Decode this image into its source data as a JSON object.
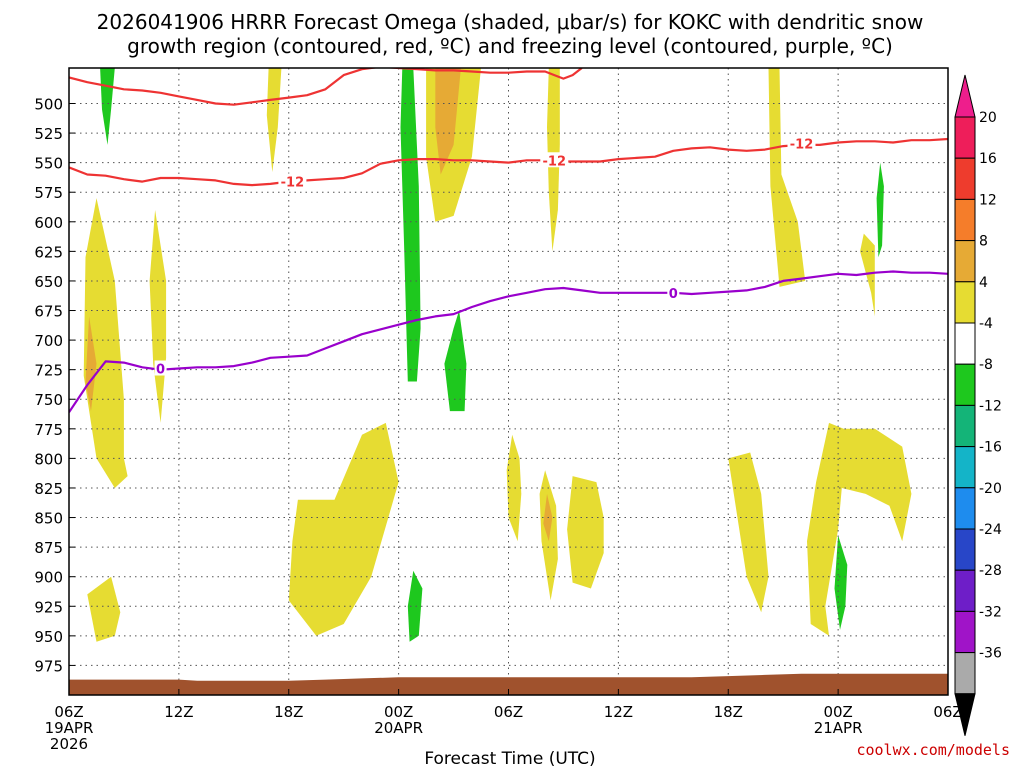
{
  "chart_data": {
    "type": "time-height contour plot",
    "title_line1": "2026041906 HRRR Forecast Omega (shaded, μbar/s) for KOKC with dendritic snow",
    "title_line2": "growth region (contoured, red, ºC) and freezing level (contoured, purple, ºC)",
    "xlabel": "Forecast Time (UTC)",
    "credit": "coolwx.com/models",
    "x_range_hours": [
      0,
      48
    ],
    "y_range_mb": [
      1000,
      470
    ],
    "x_ticks": [
      {
        "hour": 0,
        "lines": [
          "06Z",
          "19APR",
          "2026"
        ]
      },
      {
        "hour": 6,
        "lines": [
          "12Z"
        ]
      },
      {
        "hour": 12,
        "lines": [
          "18Z"
        ]
      },
      {
        "hour": 18,
        "lines": [
          "00Z",
          "20APR"
        ]
      },
      {
        "hour": 24,
        "lines": [
          "06Z"
        ]
      },
      {
        "hour": 30,
        "lines": [
          "12Z"
        ]
      },
      {
        "hour": 36,
        "lines": [
          "18Z"
        ]
      },
      {
        "hour": 42,
        "lines": [
          "00Z",
          "21APR"
        ]
      },
      {
        "hour": 48,
        "lines": [
          "06Z"
        ]
      }
    ],
    "y_ticks": [
      500,
      525,
      550,
      575,
      600,
      625,
      650,
      675,
      700,
      725,
      750,
      775,
      800,
      825,
      850,
      875,
      900,
      925,
      950,
      975
    ],
    "isotherm_minus12": [
      {
        "name": "upper",
        "points": [
          [
            0,
            478
          ],
          [
            1,
            482
          ],
          [
            2,
            485
          ],
          [
            3,
            488
          ],
          [
            4,
            489
          ],
          [
            5,
            491
          ],
          [
            6,
            494
          ],
          [
            7,
            497
          ],
          [
            8,
            500
          ],
          [
            9,
            501
          ],
          [
            10,
            499
          ],
          [
            11,
            497
          ],
          [
            12,
            495
          ],
          [
            13,
            493
          ],
          [
            14,
            488
          ],
          [
            15,
            476
          ],
          [
            16,
            471
          ],
          [
            17,
            469
          ],
          [
            18,
            470
          ],
          [
            19,
            471
          ],
          [
            20,
            472
          ],
          [
            21,
            472
          ],
          [
            22,
            473
          ],
          [
            23,
            474
          ],
          [
            24,
            474
          ],
          [
            25,
            473
          ],
          [
            26,
            473
          ],
          [
            26.5,
            476
          ],
          [
            27,
            479
          ],
          [
            27.5,
            476
          ],
          [
            28,
            470
          ]
        ]
      },
      {
        "name": "lower",
        "points": [
          [
            0,
            554
          ],
          [
            1,
            560
          ],
          [
            2,
            561
          ],
          [
            3,
            564
          ],
          [
            4,
            566
          ],
          [
            5,
            563
          ],
          [
            6,
            563
          ],
          [
            7,
            564
          ],
          [
            8,
            565
          ],
          [
            9,
            568
          ],
          [
            10,
            569
          ],
          [
            11,
            568
          ],
          [
            12,
            566
          ],
          [
            13,
            565
          ],
          [
            14,
            564
          ],
          [
            15,
            563
          ],
          [
            16,
            559
          ],
          [
            17,
            551
          ],
          [
            18,
            548
          ],
          [
            19,
            547
          ],
          [
            20,
            547
          ],
          [
            21,
            548
          ],
          [
            22,
            548
          ],
          [
            23,
            549
          ],
          [
            24,
            550
          ],
          [
            25,
            548
          ],
          [
            26,
            548
          ],
          [
            27,
            549
          ],
          [
            28,
            549
          ],
          [
            29,
            549
          ],
          [
            30,
            547
          ],
          [
            31,
            546
          ],
          [
            32,
            545
          ],
          [
            33,
            540
          ],
          [
            34,
            538
          ],
          [
            35,
            537
          ],
          [
            36,
            539
          ],
          [
            37,
            540
          ],
          [
            38,
            539
          ],
          [
            39,
            536
          ],
          [
            40,
            535
          ],
          [
            41,
            535
          ],
          [
            42,
            533
          ],
          [
            43,
            532
          ],
          [
            44,
            532
          ],
          [
            45,
            533
          ],
          [
            46,
            531
          ],
          [
            47,
            531
          ],
          [
            48,
            530
          ]
        ]
      }
    ],
    "freezing_level_0C": [
      [
        0,
        761
      ],
      [
        1,
        738
      ],
      [
        2,
        718
      ],
      [
        3,
        719
      ],
      [
        4,
        723
      ],
      [
        5,
        725
      ],
      [
        6,
        724
      ],
      [
        7,
        723
      ],
      [
        8,
        723
      ],
      [
        9,
        722
      ],
      [
        10,
        719
      ],
      [
        11,
        715
      ],
      [
        12,
        714
      ],
      [
        13,
        713
      ],
      [
        14,
        707
      ],
      [
        15,
        701
      ],
      [
        16,
        695
      ],
      [
        17,
        691
      ],
      [
        18,
        687
      ],
      [
        19,
        683
      ],
      [
        20,
        680
      ],
      [
        21,
        678
      ],
      [
        22,
        672
      ],
      [
        23,
        667
      ],
      [
        24,
        663
      ],
      [
        25,
        660
      ],
      [
        26,
        657
      ],
      [
        27,
        656
      ],
      [
        28,
        658
      ],
      [
        29,
        660
      ],
      [
        30,
        660
      ],
      [
        31,
        660
      ],
      [
        32,
        660
      ],
      [
        33,
        660
      ],
      [
        34,
        661
      ],
      [
        35,
        660
      ],
      [
        36,
        659
      ],
      [
        37,
        658
      ],
      [
        38,
        655
      ],
      [
        39,
        650
      ],
      [
        40,
        648
      ],
      [
        41,
        646
      ],
      [
        42,
        644
      ],
      [
        43,
        645
      ],
      [
        44,
        643
      ],
      [
        45,
        642
      ],
      [
        46,
        643
      ],
      [
        47,
        643
      ],
      [
        48,
        644
      ]
    ],
    "contour_labels": [
      {
        "text": "-12",
        "hour": 12.2,
        "mb": 566,
        "color": "#ee3333"
      },
      {
        "text": "-12",
        "hour": 26.5,
        "mb": 548,
        "color": "#ee3333"
      },
      {
        "text": "-12",
        "hour": 40,
        "mb": 534,
        "color": "#ee3333"
      },
      {
        "text": "0",
        "hour": 5,
        "mb": 724,
        "color": "#9900cc"
      },
      {
        "text": "0",
        "hour": 33,
        "mb": 660,
        "color": "#9900cc"
      }
    ],
    "omega_regions": [
      {
        "level": 4,
        "points": [
          [
            1.5,
            580
          ],
          [
            2.5,
            650
          ],
          [
            3,
            750
          ],
          [
            3,
            800
          ],
          [
            3.2,
            815
          ],
          [
            2.5,
            825
          ],
          [
            1.5,
            800
          ],
          [
            0.8,
            730
          ],
          [
            0.9,
            630
          ]
        ]
      },
      {
        "level": 8,
        "points": [
          [
            1.1,
            680
          ],
          [
            1.5,
            720
          ],
          [
            1.2,
            760
          ],
          [
            0.9,
            735
          ]
        ]
      },
      {
        "level": 4,
        "points": [
          [
            4.7,
            590
          ],
          [
            5.3,
            650
          ],
          [
            5.3,
            715
          ],
          [
            5,
            770
          ],
          [
            4.6,
            720
          ],
          [
            4.4,
            650
          ]
        ]
      },
      {
        "level": -4,
        "points": [
          [
            1.7,
            470
          ],
          [
            2.5,
            470
          ],
          [
            2.3,
            505
          ],
          [
            2.1,
            535
          ],
          [
            1.8,
            505
          ]
        ]
      },
      {
        "level": 4,
        "points": [
          [
            10.9,
            470
          ],
          [
            11.6,
            470
          ],
          [
            11.4,
            520
          ],
          [
            11.1,
            558
          ],
          [
            10.8,
            510
          ]
        ]
      },
      {
        "level": 4,
        "points": [
          [
            26.2,
            470
          ],
          [
            26.8,
            470
          ],
          [
            26.8,
            535
          ],
          [
            26.7,
            590
          ],
          [
            26.4,
            625
          ],
          [
            26.2,
            575
          ],
          [
            26.1,
            520
          ]
        ]
      },
      {
        "level": 4,
        "points": [
          [
            19.5,
            470
          ],
          [
            22.5,
            470
          ],
          [
            22,
            545
          ],
          [
            21,
            595
          ],
          [
            20,
            600
          ],
          [
            19.5,
            545
          ]
        ]
      },
      {
        "level": 8,
        "points": [
          [
            20,
            470
          ],
          [
            21.4,
            470
          ],
          [
            21,
            535
          ],
          [
            20.3,
            560
          ],
          [
            20,
            520
          ]
        ]
      },
      {
        "level": -4,
        "points": [
          [
            18.2,
            470
          ],
          [
            18.8,
            470
          ],
          [
            19.1,
            570
          ],
          [
            19.2,
            690
          ],
          [
            19,
            735
          ],
          [
            18.5,
            735
          ],
          [
            18.3,
            620
          ],
          [
            18.1,
            520
          ]
        ]
      },
      {
        "level": -4,
        "points": [
          [
            21,
            690
          ],
          [
            21.3,
            675
          ],
          [
            21.7,
            720
          ],
          [
            21.6,
            760
          ],
          [
            20.8,
            760
          ],
          [
            20.5,
            720
          ]
        ]
      },
      {
        "level": 4,
        "points": [
          [
            38.2,
            470
          ],
          [
            38.8,
            470
          ],
          [
            38.9,
            560
          ],
          [
            39.8,
            600
          ],
          [
            40.2,
            650
          ],
          [
            38.8,
            655
          ],
          [
            38.3,
            570
          ]
        ]
      },
      {
        "level": 4,
        "points": [
          [
            43.4,
            610
          ],
          [
            44,
            620
          ],
          [
            44,
            680
          ],
          [
            43.8,
            660
          ],
          [
            43.2,
            625
          ]
        ]
      },
      {
        "level": -4,
        "points": [
          [
            44.3,
            550
          ],
          [
            44.5,
            570
          ],
          [
            44.4,
            620
          ],
          [
            44.2,
            630
          ],
          [
            44.1,
            580
          ]
        ]
      },
      {
        "level": 4,
        "points": [
          [
            24.2,
            780
          ],
          [
            24.6,
            800
          ],
          [
            24.7,
            830
          ],
          [
            24.5,
            870
          ],
          [
            24,
            850
          ],
          [
            23.9,
            810
          ]
        ]
      },
      {
        "level": 4,
        "points": [
          [
            26,
            810
          ],
          [
            26.6,
            840
          ],
          [
            26.7,
            885
          ],
          [
            26.3,
            920
          ],
          [
            25.8,
            870
          ],
          [
            25.7,
            830
          ]
        ]
      },
      {
        "level": 8,
        "points": [
          [
            26.1,
            830
          ],
          [
            26.4,
            850
          ],
          [
            26.2,
            870
          ],
          [
            25.9,
            855
          ]
        ]
      },
      {
        "level": 4,
        "points": [
          [
            27.5,
            815
          ],
          [
            28.8,
            820
          ],
          [
            29.2,
            850
          ],
          [
            29.2,
            880
          ],
          [
            28.5,
            910
          ],
          [
            27.5,
            905
          ],
          [
            27.2,
            860
          ]
        ]
      },
      {
        "level": 4,
        "points": [
          [
            12.5,
            835
          ],
          [
            14.5,
            835
          ],
          [
            16,
            780
          ],
          [
            17.3,
            770
          ],
          [
            18,
            820
          ],
          [
            16.5,
            900
          ],
          [
            15,
            940
          ],
          [
            13.5,
            950
          ],
          [
            12,
            920
          ],
          [
            12.2,
            870
          ]
        ]
      },
      {
        "level": 4,
        "points": [
          [
            1,
            915
          ],
          [
            2.3,
            900
          ],
          [
            2.8,
            930
          ],
          [
            2.5,
            950
          ],
          [
            1.5,
            955
          ]
        ]
      },
      {
        "level": -4,
        "points": [
          [
            18.8,
            895
          ],
          [
            19.3,
            910
          ],
          [
            19.1,
            950
          ],
          [
            18.6,
            955
          ],
          [
            18.5,
            925
          ]
        ]
      },
      {
        "level": 4,
        "points": [
          [
            36,
            800
          ],
          [
            37.2,
            795
          ],
          [
            37.8,
            830
          ],
          [
            38.2,
            900
          ],
          [
            37.8,
            930
          ],
          [
            37,
            900
          ]
        ]
      },
      {
        "level": 4,
        "points": [
          [
            41.5,
            770
          ],
          [
            42.3,
            775
          ],
          [
            44,
            775
          ],
          [
            45.5,
            790
          ],
          [
            46,
            830
          ],
          [
            45.5,
            870
          ],
          [
            44.8,
            840
          ],
          [
            43.5,
            830
          ],
          [
            42.2,
            825
          ],
          [
            42,
            860
          ],
          [
            41.3,
            925
          ],
          [
            41.5,
            950
          ],
          [
            40.5,
            940
          ],
          [
            40.3,
            870
          ],
          [
            40.8,
            820
          ]
        ]
      },
      {
        "level": -4,
        "points": [
          [
            42,
            865
          ],
          [
            42.5,
            890
          ],
          [
            42.4,
            925
          ],
          [
            42.1,
            945
          ],
          [
            41.8,
            910
          ]
        ]
      }
    ],
    "colorbar": {
      "labels": [
        "20",
        "16",
        "12",
        "8",
        "4",
        "-4",
        "-8",
        "-12",
        "-16",
        "-20",
        "-24",
        "-28",
        "-32",
        "-36"
      ],
      "colors_top_to_bottom": [
        "#ee1e5a",
        "#ee3c2d",
        "#f57d2a",
        "#e6aa35",
        "#e6dc32",
        "#ffffff",
        "#1ec81e",
        "#14b478",
        "#14b4c8",
        "#1e8cee",
        "#2846c8",
        "#6e1ec8",
        "#a014c8",
        "#aaaaaa"
      ],
      "arrow_top_color": "#ee1e8c",
      "arrow_bottom_color": "#000000"
    },
    "colors": {
      "omega_4": "#e6dc32",
      "omega_8": "#e6aa35",
      "omega_neg4": "#1ec81e",
      "isotherm": "#ee3333",
      "freezing": "#9900cc",
      "terrain": "#a0522d",
      "credit": "#cc0000"
    }
  }
}
